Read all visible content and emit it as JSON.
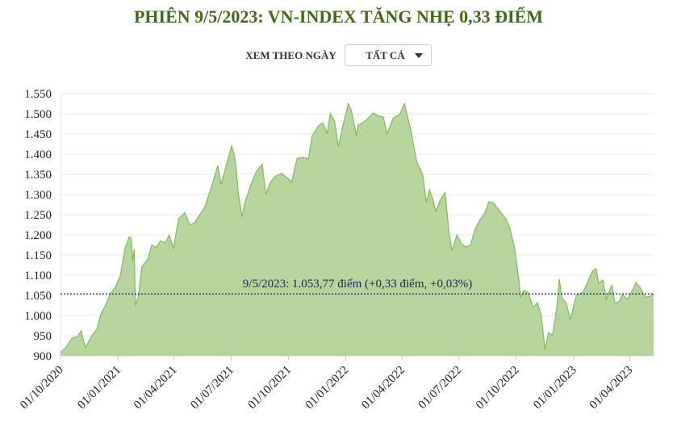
{
  "title": "PHIÊN 9/5/2023: VN-INDEX TĂNG NHẸ 0,33 ĐIỂM",
  "filter": {
    "label": "XEM THEO NGÀY",
    "selected": "TẤT CẢ",
    "icon": "caret-down-icon"
  },
  "chart_data": {
    "type": "area",
    "title": "PHIÊN 9/5/2023: VN-INDEX TĂNG NHẸ 0,33 ĐIỂM",
    "xlabel": "",
    "ylabel": "",
    "ylim": [
      900,
      1550
    ],
    "xlim": [
      "2020-10-01",
      "2023-05-09"
    ],
    "grid": true,
    "colors": {
      "fill": "#b5d59c",
      "line": "#7cbb58",
      "reference": "#1a1f6b",
      "title": "#3e6b14"
    },
    "y_ticks": [
      "900",
      "950",
      "1.000",
      "1.050",
      "1.100",
      "1.150",
      "1.200",
      "1.250",
      "1.300",
      "1.350",
      "1.400",
      "1.450",
      "1.500",
      "1.550"
    ],
    "x_ticks": [
      {
        "date": "2020-10-01",
        "label": "01/10/2020"
      },
      {
        "date": "2021-01-01",
        "label": "01/01/2021"
      },
      {
        "date": "2021-04-01",
        "label": "01/04/2021"
      },
      {
        "date": "2021-07-01",
        "label": "01/07/2021"
      },
      {
        "date": "2021-10-01",
        "label": "01/10/2021"
      },
      {
        "date": "2022-01-01",
        "label": "01/01/2022"
      },
      {
        "date": "2022-04-01",
        "label": "01/04/2022"
      },
      {
        "date": "2022-07-01",
        "label": "01/07/2022"
      },
      {
        "date": "2022-10-01",
        "label": "01/10/2022"
      },
      {
        "date": "2023-01-01",
        "label": "01/01/2023"
      },
      {
        "date": "2023-04-01",
        "label": "01/04/2023"
      }
    ],
    "reference_line": {
      "value": 1053.77,
      "label": "9/5/2023: 1.053,77 điểm (+0,33 điểm, +0,03%)"
    },
    "points": [
      [
        "2020-10-01",
        908
      ],
      [
        "2020-10-10",
        922
      ],
      [
        "2020-10-20",
        945
      ],
      [
        "2020-10-28",
        947
      ],
      [
        "2020-11-03",
        962
      ],
      [
        "2020-11-10",
        920
      ],
      [
        "2020-11-20",
        950
      ],
      [
        "2020-11-28",
        965
      ],
      [
        "2020-12-05",
        1005
      ],
      [
        "2020-12-12",
        1025
      ],
      [
        "2020-12-20",
        1055
      ],
      [
        "2020-12-28",
        1070
      ],
      [
        "2021-01-05",
        1100
      ],
      [
        "2021-01-12",
        1165
      ],
      [
        "2021-01-19",
        1195
      ],
      [
        "2021-01-22",
        1192
      ],
      [
        "2021-01-25",
        1135
      ],
      [
        "2021-01-27",
        1165
      ],
      [
        "2021-01-29",
        1025
      ],
      [
        "2021-02-03",
        1050
      ],
      [
        "2021-02-08",
        1120
      ],
      [
        "2021-02-18",
        1140
      ],
      [
        "2021-02-24",
        1175
      ],
      [
        "2021-03-03",
        1168
      ],
      [
        "2021-03-10",
        1185
      ],
      [
        "2021-03-18",
        1180
      ],
      [
        "2021-03-24",
        1200
      ],
      [
        "2021-03-31",
        1165
      ],
      [
        "2021-04-08",
        1240
      ],
      [
        "2021-04-18",
        1255
      ],
      [
        "2021-04-26",
        1225
      ],
      [
        "2021-05-04",
        1230
      ],
      [
        "2021-05-12",
        1250
      ],
      [
        "2021-05-20",
        1268
      ],
      [
        "2021-06-01",
        1325
      ],
      [
        "2021-06-10",
        1372
      ],
      [
        "2021-06-15",
        1325
      ],
      [
        "2021-06-24",
        1375
      ],
      [
        "2021-07-02",
        1420
      ],
      [
        "2021-07-06",
        1400
      ],
      [
        "2021-07-09",
        1370
      ],
      [
        "2021-07-13",
        1300
      ],
      [
        "2021-07-19",
        1245
      ],
      [
        "2021-07-23",
        1278
      ],
      [
        "2021-08-01",
        1320
      ],
      [
        "2021-08-10",
        1355
      ],
      [
        "2021-08-20",
        1375
      ],
      [
        "2021-08-26",
        1300
      ],
      [
        "2021-09-02",
        1330
      ],
      [
        "2021-09-10",
        1345
      ],
      [
        "2021-09-20",
        1352
      ],
      [
        "2021-09-30",
        1340
      ],
      [
        "2021-10-06",
        1330
      ],
      [
        "2021-10-15",
        1390
      ],
      [
        "2021-10-25",
        1392
      ],
      [
        "2021-11-02",
        1388
      ],
      [
        "2021-11-08",
        1445
      ],
      [
        "2021-11-18",
        1470
      ],
      [
        "2021-11-25",
        1478
      ],
      [
        "2021-12-02",
        1452
      ],
      [
        "2021-12-07",
        1500
      ],
      [
        "2021-12-14",
        1482
      ],
      [
        "2021-12-20",
        1418
      ],
      [
        "2021-12-28",
        1475
      ],
      [
        "2022-01-05",
        1525
      ],
      [
        "2022-01-10",
        1508
      ],
      [
        "2022-01-18",
        1445
      ],
      [
        "2022-01-21",
        1472
      ],
      [
        "2022-02-01",
        1482
      ],
      [
        "2022-02-14",
        1502
      ],
      [
        "2022-02-22",
        1495
      ],
      [
        "2022-03-02",
        1492
      ],
      [
        "2022-03-08",
        1450
      ],
      [
        "2022-03-18",
        1490
      ],
      [
        "2022-03-28",
        1498
      ],
      [
        "2022-04-05",
        1525
      ],
      [
        "2022-04-08",
        1505
      ],
      [
        "2022-04-15",
        1460
      ],
      [
        "2022-04-25",
        1378
      ],
      [
        "2022-05-04",
        1350
      ],
      [
        "2022-05-10",
        1280
      ],
      [
        "2022-05-15",
        1312
      ],
      [
        "2022-05-20",
        1290
      ],
      [
        "2022-05-25",
        1258
      ],
      [
        "2022-06-01",
        1285
      ],
      [
        "2022-06-09",
        1305
      ],
      [
        "2022-06-15",
        1210
      ],
      [
        "2022-06-20",
        1160
      ],
      [
        "2022-06-28",
        1200
      ],
      [
        "2022-07-05",
        1178
      ],
      [
        "2022-07-12",
        1170
      ],
      [
        "2022-07-20",
        1175
      ],
      [
        "2022-07-26",
        1210
      ],
      [
        "2022-08-03",
        1235
      ],
      [
        "2022-08-12",
        1255
      ],
      [
        "2022-08-18",
        1282
      ],
      [
        "2022-08-26",
        1278
      ],
      [
        "2022-09-05",
        1258
      ],
      [
        "2022-09-14",
        1240
      ],
      [
        "2022-09-20",
        1220
      ],
      [
        "2022-09-28",
        1170
      ],
      [
        "2022-10-05",
        1090
      ],
      [
        "2022-10-08",
        1045
      ],
      [
        "2022-10-13",
        1062
      ],
      [
        "2022-10-20",
        1058
      ],
      [
        "2022-10-28",
        1020
      ],
      [
        "2022-11-04",
        1032
      ],
      [
        "2022-11-10",
        1000
      ],
      [
        "2022-11-16",
        915
      ],
      [
        "2022-11-22",
        958
      ],
      [
        "2022-11-28",
        950
      ],
      [
        "2022-12-05",
        1020
      ],
      [
        "2022-12-09",
        1090
      ],
      [
        "2022-12-13",
        1045
      ],
      [
        "2022-12-20",
        1030
      ],
      [
        "2022-12-27",
        990
      ],
      [
        "2023-01-05",
        1050
      ],
      [
        "2023-01-16",
        1058
      ],
      [
        "2023-01-31",
        1110
      ],
      [
        "2023-02-06",
        1116
      ],
      [
        "2023-02-10",
        1080
      ],
      [
        "2023-02-17",
        1088
      ],
      [
        "2023-02-22",
        1040
      ],
      [
        "2023-03-03",
        1075
      ],
      [
        "2023-03-08",
        1030
      ],
      [
        "2023-03-15",
        1035
      ],
      [
        "2023-03-20",
        1052
      ],
      [
        "2023-03-28",
        1040
      ],
      [
        "2023-04-05",
        1062
      ],
      [
        "2023-04-11",
        1082
      ],
      [
        "2023-04-17",
        1070
      ],
      [
        "2023-04-26",
        1045
      ],
      [
        "2023-05-04",
        1048
      ],
      [
        "2023-05-09",
        1053.77
      ]
    ]
  }
}
